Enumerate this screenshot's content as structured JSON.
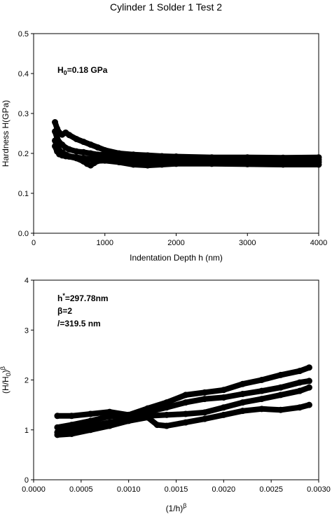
{
  "figure_title": "Cylinder 1 Solder 1 Test 2",
  "chart_data": [
    {
      "type": "scatter",
      "title": "",
      "xlabel": "Indentation Depth h (nm)",
      "ylabel": "Hardness H(GPa)",
      "xlim": [
        0,
        4000
      ],
      "ylim": [
        0,
        0.5
      ],
      "xticks": [
        "0",
        "1000",
        "2000",
        "3000",
        "4000"
      ],
      "yticks": [
        "0.0",
        "0.1",
        "0.2",
        "0.3",
        "0.4",
        "0.5"
      ],
      "grid": false,
      "annotations": [
        {
          "main": "H",
          "sub": "0",
          "rest": "=0.18 GPa"
        }
      ],
      "series": [
        {
          "x": [
            300,
            330,
            360,
            400,
            450,
            500,
            600,
            700,
            800,
            900,
            1000,
            1200,
            1400,
            1600,
            1800,
            2000,
            2500,
            3000,
            3500,
            4000
          ],
          "y": [
            0.278,
            0.262,
            0.252,
            0.247,
            0.252,
            0.246,
            0.236,
            0.229,
            0.222,
            0.215,
            0.208,
            0.2,
            0.197,
            0.195,
            0.193,
            0.192,
            0.19,
            0.19,
            0.189,
            0.19
          ]
        },
        {
          "x": [
            300,
            330,
            360,
            400,
            450,
            500,
            600,
            700,
            800,
            900,
            1000,
            1200,
            1400,
            1600,
            1800,
            2000,
            2500,
            3000,
            3500,
            4000
          ],
          "y": [
            0.255,
            0.238,
            0.228,
            0.222,
            0.214,
            0.21,
            0.205,
            0.203,
            0.2,
            0.197,
            0.196,
            0.194,
            0.192,
            0.191,
            0.19,
            0.189,
            0.188,
            0.186,
            0.185,
            0.184
          ]
        },
        {
          "x": [
            300,
            330,
            360,
            400,
            450,
            500,
            600,
            700,
            800,
            900,
            1000,
            1200,
            1400,
            1600,
            1800,
            2000,
            2500,
            3000,
            3500,
            4000
          ],
          "y": [
            0.232,
            0.218,
            0.208,
            0.202,
            0.197,
            0.193,
            0.19,
            0.188,
            0.186,
            0.186,
            0.186,
            0.185,
            0.183,
            0.181,
            0.181,
            0.181,
            0.18,
            0.179,
            0.178,
            0.178
          ]
        },
        {
          "x": [
            300,
            330,
            360,
            400,
            450,
            500,
            600,
            700,
            750,
            800,
            850,
            900,
            1000,
            1200,
            1400,
            1600,
            1800,
            2000,
            2500,
            3000,
            3500,
            4000
          ],
          "y": [
            0.218,
            0.205,
            0.198,
            0.195,
            0.193,
            0.192,
            0.188,
            0.18,
            0.174,
            0.17,
            0.176,
            0.181,
            0.182,
            0.178,
            0.172,
            0.17,
            0.172,
            0.174,
            0.174,
            0.173,
            0.172,
            0.172
          ]
        }
      ]
    },
    {
      "type": "scatter",
      "title": "",
      "xlabel": "(1/h)^β",
      "ylabel": "(H/H0)^β",
      "xlim": [
        0,
        0.003
      ],
      "ylim": [
        0,
        4
      ],
      "xticks": [
        "0.0000",
        "0.0005",
        "0.0010",
        "0.0015",
        "0.0020",
        "0.0025",
        "0.0030"
      ],
      "yticks": [
        "0",
        "1",
        "2",
        "3",
        "4"
      ],
      "grid": false,
      "annotations": [
        {
          "main": "h",
          "sup": "*",
          "rest": "=297.78nm"
        },
        {
          "main": "β=2"
        },
        {
          "main": "/=319.5 nm"
        }
      ],
      "series": [
        {
          "x": [
            0.00025,
            0.0004,
            0.0006,
            0.0008,
            0.001,
            0.0012,
            0.0014,
            0.0016,
            0.0018,
            0.002,
            0.0022,
            0.0024,
            0.0026,
            0.0028,
            0.0029
          ],
          "y": [
            1.05,
            1.1,
            1.18,
            1.27,
            1.3,
            1.43,
            1.55,
            1.7,
            1.75,
            1.8,
            1.92,
            2.0,
            2.1,
            2.18,
            2.25
          ]
        },
        {
          "x": [
            0.00025,
            0.0004,
            0.0006,
            0.0008,
            0.001,
            0.0012,
            0.0014,
            0.0016,
            0.0018,
            0.002,
            0.0022,
            0.0024,
            0.0026,
            0.0028,
            0.0029
          ],
          "y": [
            1.28,
            1.28,
            1.32,
            1.36,
            1.3,
            1.36,
            1.45,
            1.55,
            1.62,
            1.65,
            1.72,
            1.78,
            1.85,
            1.95,
            1.98
          ]
        },
        {
          "x": [
            0.00025,
            0.0004,
            0.0006,
            0.0008,
            0.001,
            0.0012,
            0.0014,
            0.0016,
            0.0018,
            0.002,
            0.0022,
            0.0024,
            0.0026,
            0.0028,
            0.0029
          ],
          "y": [
            0.95,
            1.0,
            1.08,
            1.15,
            1.22,
            1.28,
            1.3,
            1.32,
            1.35,
            1.45,
            1.55,
            1.62,
            1.7,
            1.78,
            1.85
          ]
        },
        {
          "x": [
            0.00025,
            0.0004,
            0.0006,
            0.0008,
            0.001,
            0.0012,
            0.0013,
            0.0014,
            0.0016,
            0.0018,
            0.002,
            0.0022,
            0.0024,
            0.0026,
            0.0028,
            0.0029
          ],
          "y": [
            0.9,
            0.92,
            1.0,
            1.08,
            1.18,
            1.25,
            1.1,
            1.08,
            1.15,
            1.22,
            1.3,
            1.38,
            1.42,
            1.4,
            1.45,
            1.5
          ]
        }
      ]
    }
  ]
}
